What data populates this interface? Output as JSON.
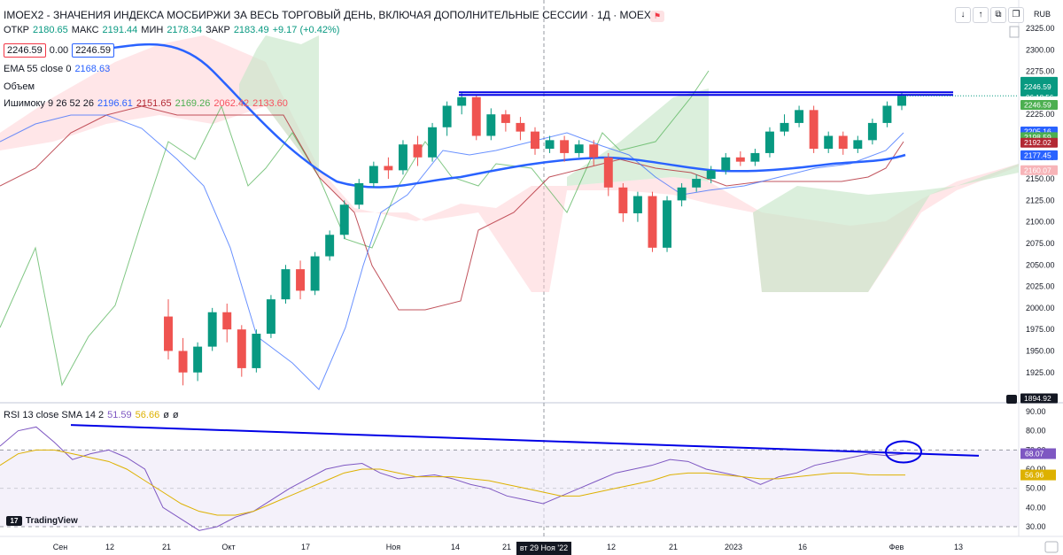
{
  "header": {
    "symbol": "IMOEX2",
    "title": "IMOEX2 - ЗНАЧЕНИЯ ИНДЕКСА МОСБИРЖИ ЗА ВЕСЬ ТОРГОВЫЙ ДЕНЬ, ВКЛЮЧАЯ ДОПОЛНИТЕЛЬНЫЕ СЕССИИ · 1Д · MOEX",
    "currency": "RUB",
    "ohlc": {
      "o_label": "ОТКР",
      "o": "2180.65",
      "h_label": "МАКС",
      "h": "2191.44",
      "l_label": "МИН",
      "l": "2178.34",
      "c_label": "ЗАКР",
      "c": "2183.49",
      "change": "+9.17 (+0.42%)"
    },
    "price_left": "2246.59",
    "spread": "0.00",
    "price_right": "2246.59"
  },
  "indicators": {
    "ema": {
      "label": "EMA 55 close 0",
      "value": "2168.63"
    },
    "volume": {
      "label": "Объем"
    },
    "ichimoku": {
      "label": "Ишимоку 9 26 52 26",
      "v1": "2196.61",
      "v2": "2151.65",
      "v3": "2169.26",
      "v4": "2062.42",
      "v5": "2133.60"
    },
    "rsi": {
      "label": "RSI 13 close SMA 14 2",
      "v1": "51.59",
      "v2": "56.66",
      "v3": "ø",
      "v4": "ø"
    }
  },
  "price_axis": {
    "ticks": [
      "2325.00",
      "2300.00",
      "2275.00",
      "2250.00",
      "2225.00",
      "2200.00",
      "2175.00",
      "2150.00",
      "2125.00",
      "2100.00",
      "2075.00",
      "2050.00",
      "2025.00",
      "2000.00",
      "1975.00",
      "1950.00",
      "1925.00"
    ],
    "labels": [
      {
        "text": "2246.59",
        "sub": "06:18:56",
        "color": "#089981"
      },
      {
        "text": "2246.59",
        "color": "#4caf50"
      },
      {
        "text": "2205.16",
        "color": "#2962ff"
      },
      {
        "text": "2198.59",
        "color": "#4caf50"
      },
      {
        "text": "2192.02",
        "color": "#b22833"
      },
      {
        "text": "2177.45",
        "color": "#2962ff"
      },
      {
        "text": "2160.07",
        "color": "#f7b4b8"
      },
      {
        "text": "1894.92",
        "color": "#131722"
      }
    ]
  },
  "rsi_axis": {
    "ticks": [
      "90.00",
      "80.00",
      "70.00",
      "60.00",
      "50.00",
      "40.00",
      "30.00"
    ],
    "labels": [
      {
        "text": "68.07",
        "color": "#7e57c2"
      },
      {
        "text": "56.96",
        "color": "#ddb100"
      }
    ]
  },
  "time_axis": {
    "labels": [
      "Сен",
      "12",
      "21",
      "Окт",
      "17",
      "Ноя",
      "14",
      "21",
      "12",
      "21",
      "2023",
      "16",
      "Фев",
      "13"
    ],
    "crosshair_label": "вт 29 Ноя '22"
  },
  "branding": {
    "logo_text": "TradingView",
    "logo_mark": "17"
  },
  "top_buttons": [
    "↓",
    "↑",
    "⧉",
    "❐"
  ],
  "colors": {
    "up": "#089981",
    "down": "#ef5350",
    "ema": "#2962ff",
    "cloud_green": "#c8e6c9",
    "cloud_red": "#ffcdd2",
    "drawing": "#0000e6",
    "rsi": "#7e57c2",
    "rsi_sma": "#ddb100"
  },
  "chart_data": {
    "type": "candlestick",
    "y_range": [
      1894.92,
      2325
    ],
    "resistance_level": 2246.59,
    "candles": [
      [
        1990,
        1950,
        2010,
        1940
      ],
      [
        1950,
        1925,
        1965,
        1910
      ],
      [
        1925,
        1955,
        1960,
        1915
      ],
      [
        1955,
        1995,
        2000,
        1950
      ],
      [
        1995,
        1975,
        2005,
        1960
      ],
      [
        1975,
        1930,
        1980,
        1920
      ],
      [
        1930,
        1970,
        1975,
        1925
      ],
      [
        1970,
        2010,
        2015,
        1965
      ],
      [
        2010,
        2045,
        2050,
        2005
      ],
      [
        2045,
        2020,
        2055,
        2010
      ],
      [
        2020,
        2060,
        2065,
        2015
      ],
      [
        2060,
        2085,
        2090,
        2055
      ],
      [
        2085,
        2120,
        2125,
        2080
      ],
      [
        2120,
        2145,
        2150,
        2115
      ],
      [
        2145,
        2165,
        2170,
        2140
      ],
      [
        2165,
        2160,
        2175,
        2150
      ],
      [
        2160,
        2190,
        2195,
        2155
      ],
      [
        2190,
        2175,
        2200,
        2165
      ],
      [
        2175,
        2210,
        2215,
        2170
      ],
      [
        2210,
        2235,
        2240,
        2200
      ],
      [
        2235,
        2245,
        2250,
        2225
      ],
      [
        2245,
        2200,
        2248,
        2195
      ],
      [
        2200,
        2225,
        2232,
        2195
      ],
      [
        2225,
        2215,
        2230,
        2205
      ],
      [
        2215,
        2205,
        2222,
        2195
      ],
      [
        2205,
        2185,
        2210,
        2178
      ],
      [
        2185,
        2195,
        2200,
        2180
      ],
      [
        2195,
        2180,
        2200,
        2170
      ],
      [
        2180,
        2190,
        2195,
        2175
      ],
      [
        2190,
        2175,
        2195,
        2165
      ],
      [
        2175,
        2140,
        2180,
        2130
      ],
      [
        2140,
        2110,
        2145,
        2100
      ],
      [
        2110,
        2130,
        2135,
        2100
      ],
      [
        2130,
        2070,
        2135,
        2065
      ],
      [
        2070,
        2125,
        2130,
        2065
      ],
      [
        2125,
        2140,
        2145,
        2118
      ],
      [
        2140,
        2150,
        2155,
        2135
      ],
      [
        2150,
        2160,
        2165,
        2145
      ],
      [
        2160,
        2175,
        2180,
        2155
      ],
      [
        2175,
        2170,
        2182,
        2165
      ],
      [
        2170,
        2180,
        2185,
        2165
      ],
      [
        2180,
        2205,
        2210,
        2175
      ],
      [
        2205,
        2215,
        2225,
        2200
      ],
      [
        2215,
        2230,
        2235,
        2210
      ],
      [
        2230,
        2185,
        2235,
        2180
      ],
      [
        2185,
        2200,
        2205,
        2180
      ],
      [
        2200,
        2185,
        2205,
        2178
      ],
      [
        2185,
        2195,
        2200,
        2180
      ],
      [
        2195,
        2215,
        2220,
        2190
      ],
      [
        2215,
        2235,
        2240,
        2210
      ],
      [
        2235,
        2246.59,
        2250,
        2230
      ]
    ],
    "rsi_values": [
      72,
      80,
      82,
      74,
      65,
      68,
      70,
      66,
      60,
      40,
      34,
      28,
      30,
      35,
      38,
      44,
      50,
      55,
      60,
      62,
      63,
      58,
      55,
      56,
      57,
      55,
      52,
      50,
      46,
      44,
      42,
      46,
      50,
      54,
      58,
      60,
      62,
      65,
      64,
      60,
      58,
      56,
      52,
      56,
      58,
      62,
      64,
      66,
      68,
      67,
      68.07
    ],
    "rsi_sma_values": [
      62,
      68,
      70,
      70,
      68,
      66,
      64,
      60,
      54,
      48,
      42,
      38,
      36,
      36,
      38,
      42,
      46,
      50,
      54,
      58,
      60,
      60,
      58,
      56,
      56,
      56,
      55,
      54,
      52,
      50,
      48,
      46,
      46,
      48,
      50,
      52,
      54,
      57,
      58,
      58,
      57,
      56,
      55,
      55,
      56,
      57,
      58,
      58,
      57,
      56.96,
      56.96
    ],
    "rsi_trendline": [
      [
        80,
        83
      ],
      [
        1105,
        67
      ]
    ]
  }
}
